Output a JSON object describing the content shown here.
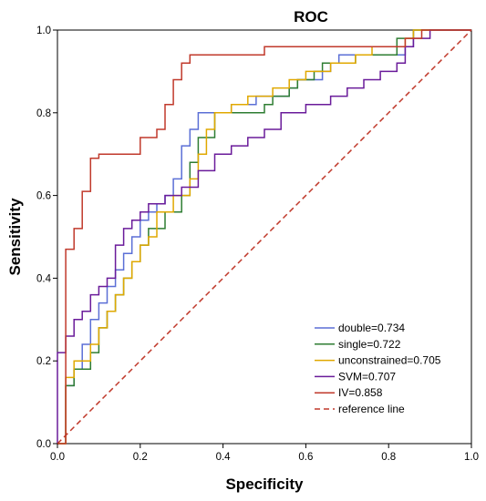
{
  "chart_data": {
    "type": "line",
    "title": "ROC",
    "xlabel": "Specificity",
    "ylabel": "Sensitivity",
    "xlim": [
      0,
      1
    ],
    "ylim": [
      0,
      1
    ],
    "xticks": [
      "0.0",
      "0.2",
      "0.4",
      "0.6",
      "0.8",
      "1.0"
    ],
    "yticks": [
      "0.0",
      "0.2",
      "0.4",
      "0.6",
      "0.8",
      "1.0"
    ],
    "grid": false,
    "legend_position": "bottom-right",
    "series": [
      {
        "name": "double=0.734",
        "color": "#5b6fd6",
        "x": [
          0,
          0.02,
          0.02,
          0.04,
          0.04,
          0.06,
          0.06,
          0.08,
          0.08,
          0.1,
          0.1,
          0.12,
          0.12,
          0.14,
          0.14,
          0.16,
          0.16,
          0.18,
          0.18,
          0.2,
          0.2,
          0.22,
          0.22,
          0.24,
          0.24,
          0.26,
          0.26,
          0.28,
          0.28,
          0.3,
          0.3,
          0.32,
          0.32,
          0.34,
          0.34,
          0.36,
          0.36,
          0.38,
          0.38,
          0.42,
          0.42,
          0.48,
          0.48,
          0.52,
          0.52,
          0.56,
          0.56,
          0.58,
          0.58,
          0.62,
          0.62,
          0.64,
          0.64,
          0.66,
          0.66,
          0.68,
          0.68,
          0.74,
          0.74,
          0.8,
          0.8,
          0.84,
          0.84,
          0.86,
          0.86,
          1.0
        ],
        "y": [
          0,
          0,
          0.14,
          0.14,
          0.18,
          0.18,
          0.24,
          0.24,
          0.3,
          0.3,
          0.34,
          0.34,
          0.38,
          0.38,
          0.42,
          0.42,
          0.46,
          0.46,
          0.5,
          0.5,
          0.54,
          0.54,
          0.56,
          0.56,
          0.58,
          0.58,
          0.6,
          0.6,
          0.64,
          0.64,
          0.72,
          0.72,
          0.76,
          0.76,
          0.8,
          0.8,
          0.8,
          0.8,
          0.8,
          0.8,
          0.82,
          0.82,
          0.84,
          0.84,
          0.84,
          0.84,
          0.86,
          0.86,
          0.88,
          0.88,
          0.88,
          0.88,
          0.9,
          0.9,
          0.92,
          0.92,
          0.94,
          0.94,
          0.94,
          0.94,
          0.94,
          0.94,
          0.96,
          0.96,
          1.0,
          1.0
        ]
      },
      {
        "name": "single=0.722",
        "color": "#2e7d32",
        "x": [
          0,
          0.02,
          0.02,
          0.04,
          0.04,
          0.08,
          0.08,
          0.1,
          0.1,
          0.12,
          0.12,
          0.14,
          0.14,
          0.16,
          0.16,
          0.18,
          0.18,
          0.2,
          0.2,
          0.22,
          0.22,
          0.26,
          0.26,
          0.3,
          0.3,
          0.32,
          0.32,
          0.34,
          0.34,
          0.38,
          0.38,
          0.4,
          0.4,
          0.44,
          0.44,
          0.5,
          0.5,
          0.52,
          0.52,
          0.56,
          0.56,
          0.58,
          0.58,
          0.62,
          0.62,
          0.64,
          0.64,
          0.68,
          0.68,
          0.72,
          0.72,
          0.82,
          0.82,
          0.86,
          0.86,
          1.0
        ],
        "y": [
          0,
          0,
          0.14,
          0.14,
          0.18,
          0.18,
          0.22,
          0.22,
          0.28,
          0.28,
          0.32,
          0.32,
          0.36,
          0.36,
          0.4,
          0.4,
          0.44,
          0.44,
          0.48,
          0.48,
          0.52,
          0.52,
          0.56,
          0.56,
          0.6,
          0.6,
          0.68,
          0.68,
          0.74,
          0.74,
          0.8,
          0.8,
          0.8,
          0.8,
          0.8,
          0.8,
          0.82,
          0.82,
          0.84,
          0.84,
          0.86,
          0.86,
          0.88,
          0.88,
          0.9,
          0.9,
          0.92,
          0.92,
          0.92,
          0.92,
          0.94,
          0.94,
          0.98,
          0.98,
          1.0,
          1.0
        ]
      },
      {
        "name": "unconstrained=0.705",
        "color": "#e0a800",
        "x": [
          0,
          0.02,
          0.02,
          0.04,
          0.04,
          0.08,
          0.08,
          0.1,
          0.1,
          0.12,
          0.12,
          0.14,
          0.14,
          0.16,
          0.16,
          0.18,
          0.18,
          0.2,
          0.2,
          0.22,
          0.22,
          0.24,
          0.24,
          0.28,
          0.28,
          0.32,
          0.32,
          0.34,
          0.34,
          0.36,
          0.36,
          0.38,
          0.38,
          0.4,
          0.4,
          0.42,
          0.42,
          0.46,
          0.46,
          0.52,
          0.52,
          0.56,
          0.56,
          0.6,
          0.6,
          0.62,
          0.62,
          0.66,
          0.66,
          0.72,
          0.72,
          0.76,
          0.76,
          0.8,
          0.8,
          0.84,
          0.84,
          0.86,
          0.86,
          0.92,
          0.92,
          1.0
        ],
        "y": [
          0,
          0,
          0.16,
          0.16,
          0.2,
          0.2,
          0.24,
          0.24,
          0.28,
          0.28,
          0.32,
          0.32,
          0.36,
          0.36,
          0.4,
          0.4,
          0.44,
          0.44,
          0.48,
          0.48,
          0.5,
          0.5,
          0.56,
          0.56,
          0.6,
          0.6,
          0.64,
          0.64,
          0.7,
          0.7,
          0.76,
          0.76,
          0.8,
          0.8,
          0.8,
          0.8,
          0.82,
          0.82,
          0.84,
          0.84,
          0.86,
          0.86,
          0.88,
          0.88,
          0.9,
          0.9,
          0.9,
          0.9,
          0.92,
          0.92,
          0.94,
          0.94,
          0.96,
          0.96,
          0.96,
          0.96,
          0.98,
          0.98,
          1.0,
          1.0,
          1.0,
          1.0
        ]
      },
      {
        "name": "SVM=0.707",
        "color": "#6a1b9a",
        "x": [
          0,
          0.0,
          0.02,
          0.02,
          0.04,
          0.04,
          0.06,
          0.06,
          0.08,
          0.08,
          0.1,
          0.1,
          0.12,
          0.12,
          0.14,
          0.14,
          0.16,
          0.16,
          0.18,
          0.18,
          0.2,
          0.2,
          0.22,
          0.22,
          0.26,
          0.26,
          0.3,
          0.3,
          0.34,
          0.34,
          0.38,
          0.38,
          0.42,
          0.42,
          0.46,
          0.46,
          0.5,
          0.5,
          0.54,
          0.54,
          0.6,
          0.6,
          0.66,
          0.66,
          0.7,
          0.7,
          0.74,
          0.74,
          0.78,
          0.78,
          0.82,
          0.82,
          0.84,
          0.84,
          0.86,
          0.86,
          0.9,
          0.9,
          1.0
        ],
        "y": [
          0,
          0.22,
          0.22,
          0.26,
          0.26,
          0.3,
          0.3,
          0.32,
          0.32,
          0.36,
          0.36,
          0.38,
          0.38,
          0.4,
          0.4,
          0.48,
          0.48,
          0.52,
          0.52,
          0.54,
          0.54,
          0.56,
          0.56,
          0.58,
          0.58,
          0.6,
          0.6,
          0.62,
          0.62,
          0.66,
          0.66,
          0.7,
          0.7,
          0.72,
          0.72,
          0.74,
          0.74,
          0.76,
          0.76,
          0.8,
          0.8,
          0.82,
          0.82,
          0.84,
          0.84,
          0.86,
          0.86,
          0.88,
          0.88,
          0.9,
          0.9,
          0.92,
          0.92,
          0.96,
          0.96,
          0.98,
          0.98,
          1.0,
          1.0
        ]
      },
      {
        "name": "IV=0.858",
        "color": "#c0392b",
        "x": [
          0,
          0.02,
          0.02,
          0.04,
          0.04,
          0.06,
          0.06,
          0.08,
          0.08,
          0.1,
          0.1,
          0.14,
          0.14,
          0.2,
          0.2,
          0.24,
          0.24,
          0.26,
          0.26,
          0.28,
          0.28,
          0.3,
          0.3,
          0.32,
          0.32,
          0.34,
          0.34,
          0.5,
          0.5,
          0.84,
          0.84,
          0.88,
          0.88,
          1.0
        ],
        "y": [
          0,
          0,
          0.47,
          0.47,
          0.52,
          0.52,
          0.61,
          0.61,
          0.69,
          0.69,
          0.7,
          0.7,
          0.7,
          0.7,
          0.74,
          0.74,
          0.76,
          0.76,
          0.82,
          0.82,
          0.88,
          0.88,
          0.92,
          0.92,
          0.94,
          0.94,
          0.94,
          0.94,
          0.96,
          0.96,
          0.98,
          0.98,
          1.0,
          1.0
        ]
      },
      {
        "name": "reference line",
        "color": "#c0392b",
        "dashed": true,
        "x": [
          0,
          1
        ],
        "y": [
          0,
          1
        ]
      }
    ]
  }
}
